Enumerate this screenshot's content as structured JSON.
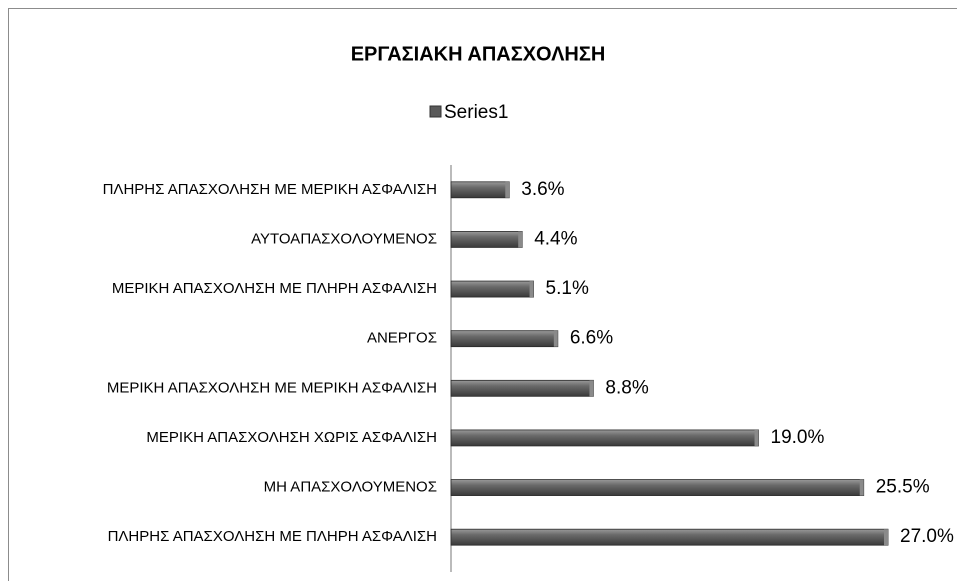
{
  "chart_data": {
    "type": "bar",
    "orientation": "horizontal",
    "title": "ΕΡΓΑΣΙΑΚΗ ΑΠΑΣΧΟΛΗΣΗ",
    "categories": [
      "ΠΛΗΡΗΣ ΑΠΑΣΧΟΛΗΣΗ ΜΕ ΜΕΡΙΚΗ ΑΣΦΑΛΙΣΗ",
      "ΑΥΤΟΑΠΑΣΧΟΛΟΥΜΕΝΟΣ",
      "ΜΕΡΙΚΗ ΑΠΑΣΧΟΛΗΣΗ ΜΕ ΠΛΗΡΗ ΑΣΦΑΛΙΣΗ",
      "ΑΝΕΡΓΟΣ",
      "ΜΕΡΙΚΗ ΑΠΑΣΧΟΛΗΣΗ ΜΕ ΜΕΡΙΚΗ ΑΣΦΑΛΙΣΗ",
      "ΜΕΡΙΚΗ ΑΠΑΣΧΟΛΗΣΗ ΧΩΡΙΣ ΑΣΦΑΛΙΣΗ",
      "ΜΗ ΑΠΑΣΧΟΛΟΥΜΕΝΟΣ",
      "ΠΛΗΡΗΣ ΑΠΑΣΧΟΛΗΣΗ ΜΕ ΠΛΗΡΗ ΑΣΦΑΛΙΣΗ"
    ],
    "series": [
      {
        "name": "Series1",
        "color": "#5a5a5a",
        "values": [
          3.6,
          4.4,
          5.1,
          6.6,
          8.8,
          19.0,
          25.5,
          27.0
        ],
        "value_labels": [
          "3.6%",
          "4.4%",
          "5.1%",
          "6.6%",
          "8.8%",
          "19.0%",
          "25.5%",
          "27.0%"
        ]
      }
    ],
    "legend": "top"
  }
}
